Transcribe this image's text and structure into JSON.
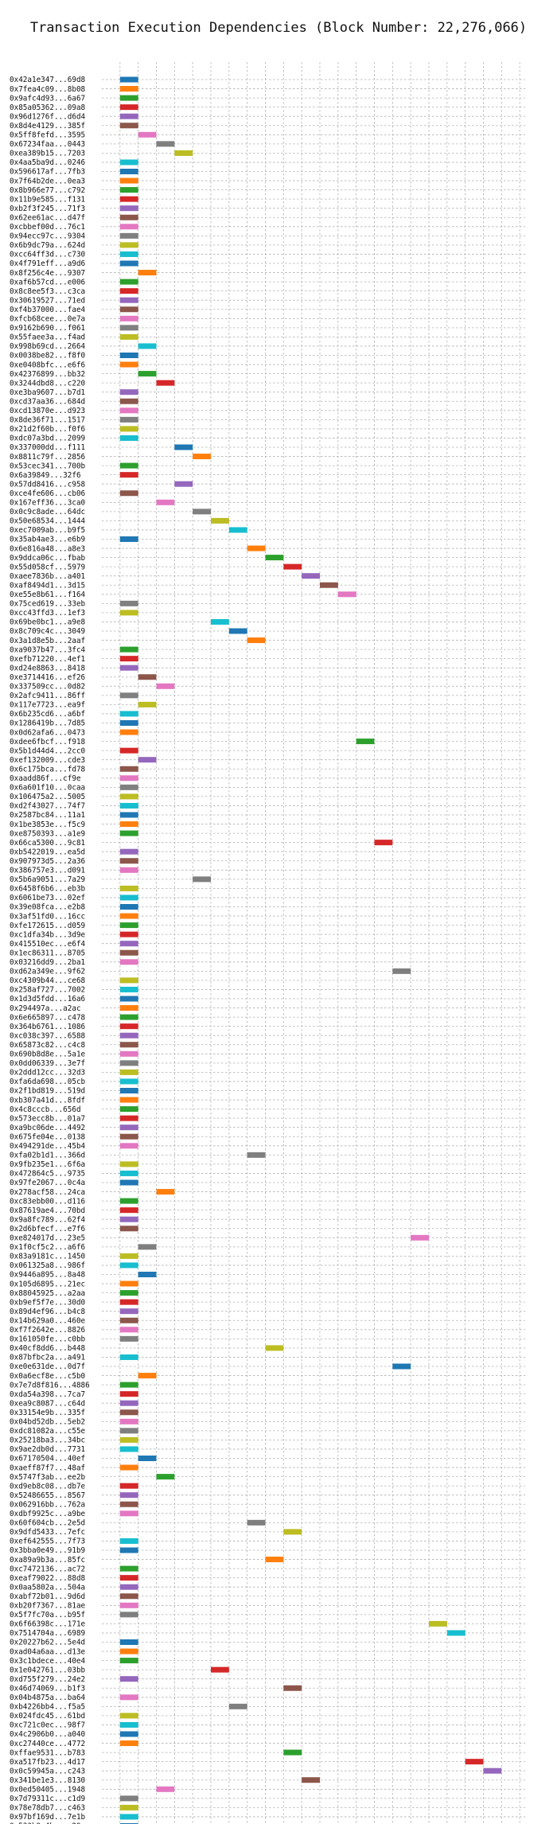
{
  "chart_data": {
    "type": "bar",
    "title": "Transaction Execution Dependencies (Block Number: 22,276,066)",
    "xlabel": "",
    "ylabel": "",
    "xlim": [
      -1,
      22.3
    ],
    "xticks": [
      0,
      5,
      10,
      15,
      20
    ],
    "grid": true,
    "palette": [
      "#1f77b4",
      "#ff7f0e",
      "#2ca02c",
      "#d62728",
      "#9467bd",
      "#8c564b",
      "#e377c2",
      "#7f7f7f",
      "#bcbd22",
      "#17becf"
    ],
    "transactions": [
      {
        "label": "0x42a1e347...69d8",
        "start": 0
      },
      {
        "label": "0x7fea4c09...8b08",
        "start": 0
      },
      {
        "label": "0x9afc4d93...6a67",
        "start": 0
      },
      {
        "label": "0x85a05362...09a8",
        "start": 0
      },
      {
        "label": "0x96d1276f...d6d4",
        "start": 0
      },
      {
        "label": "0x8d4e4129...385f",
        "start": 0
      },
      {
        "label": "0x5ff8fefd...3595",
        "start": 1
      },
      {
        "label": "0x67234faa...0443",
        "start": 2
      },
      {
        "label": "0xea389b15...7203",
        "start": 3
      },
      {
        "label": "0x4aa5ba9d...0246",
        "start": 0
      },
      {
        "label": "0x596617af...7fb3",
        "start": 0
      },
      {
        "label": "0x7f64b2de...0ea3",
        "start": 0
      },
      {
        "label": "0x8b966e77...c792",
        "start": 0
      },
      {
        "label": "0x11b9e585...f131",
        "start": 0
      },
      {
        "label": "0xb2f3f245...71f3",
        "start": 0
      },
      {
        "label": "0x62ee61ac...d47f",
        "start": 0
      },
      {
        "label": "0xcbbef00d...76c1",
        "start": 0
      },
      {
        "label": "0x94ecc97c...9304",
        "start": 0
      },
      {
        "label": "0x6b9dc79a...624d",
        "start": 0
      },
      {
        "label": "0xcc64ff3d...c730",
        "start": 0
      },
      {
        "label": "0x4f791eff...a9d6",
        "start": 0
      },
      {
        "label": "0x8f256c4e...9307",
        "start": 1
      },
      {
        "label": "0xaf6b57cd...e006",
        "start": 0
      },
      {
        "label": "0x8c8ee5f3...c3ca",
        "start": 0
      },
      {
        "label": "0x30619527...71ed",
        "start": 0
      },
      {
        "label": "0xf4b37000...fae4",
        "start": 0
      },
      {
        "label": "0xfcb68cee...0e7a",
        "start": 0
      },
      {
        "label": "0x9162b690...f061",
        "start": 0
      },
      {
        "label": "0x55faee3a...f4ad",
        "start": 0
      },
      {
        "label": "0x998b69cd...2664",
        "start": 1
      },
      {
        "label": "0x0038be82...f8f0",
        "start": 0
      },
      {
        "label": "0xe0408bfc...e6f6",
        "start": 0
      },
      {
        "label": "0x42376899...bb32",
        "start": 1
      },
      {
        "label": "0x3244dbd8...c220",
        "start": 2
      },
      {
        "label": "0xe3ba9607...b7d1",
        "start": 0
      },
      {
        "label": "0xcd37aa36...684d",
        "start": 0
      },
      {
        "label": "0xcd13870e...d923",
        "start": 0
      },
      {
        "label": "0x8de36f71...1517",
        "start": 0
      },
      {
        "label": "0x21d2f60b...f0f6",
        "start": 0
      },
      {
        "label": "0xdc07a3bd...2099",
        "start": 0
      },
      {
        "label": "0x337000dd...f111",
        "start": 3
      },
      {
        "label": "0x8811c79f...2856",
        "start": 4
      },
      {
        "label": "0x53cec341...700b",
        "start": 0
      },
      {
        "label": "0x6a39849...32f6",
        "start": 0
      },
      {
        "label": "0x57dd8416...c958",
        "start": 3
      },
      {
        "label": "0xce4fe606...cb06",
        "start": 0
      },
      {
        "label": "0x167eff36...3ca0",
        "start": 2
      },
      {
        "label": "0x0c9c8ade...64dc",
        "start": 4
      },
      {
        "label": "0x50e68534...1444",
        "start": 5
      },
      {
        "label": "0xec7009ab...b9f5",
        "start": 6
      },
      {
        "label": "0x35ab4ae3...e6b9",
        "start": 0
      },
      {
        "label": "0x6e816a48...a8e3",
        "start": 7
      },
      {
        "label": "0x9ddca06c...fbab",
        "start": 8
      },
      {
        "label": "0x55d058cf...5979",
        "start": 9
      },
      {
        "label": "0xaee7836b...a401",
        "start": 10
      },
      {
        "label": "0xaf8494d1...3d15",
        "start": 11
      },
      {
        "label": "0xe55e8b61...f164",
        "start": 12
      },
      {
        "label": "0x75ced619...33eb",
        "start": 0
      },
      {
        "label": "0xcc43ffd3...1ef3",
        "start": 0
      },
      {
        "label": "0x69be0bc1...a9e8",
        "start": 5
      },
      {
        "label": "0x8c709c4c...3049",
        "start": 6
      },
      {
        "label": "0x3a1d8e5b...2aaf",
        "start": 7
      },
      {
        "label": "0xa9037b47...3fc4",
        "start": 0
      },
      {
        "label": "0xefb71220...4ef1",
        "start": 0
      },
      {
        "label": "0xd24e8863...8418",
        "start": 0
      },
      {
        "label": "0xe3714416...ef26",
        "start": 1
      },
      {
        "label": "0x337509cc...0d82",
        "start": 2
      },
      {
        "label": "0x2afc9411...86ff",
        "start": 0
      },
      {
        "label": "0x117e7723...ea9f",
        "start": 1
      },
      {
        "label": "0x6b235cd6...a6bf",
        "start": 0
      },
      {
        "label": "0x1286419b...7d85",
        "start": 0
      },
      {
        "label": "0x0d62afa6...0473",
        "start": 0
      },
      {
        "label": "0xdee6fbcf...f918",
        "start": 13
      },
      {
        "label": "0x5b1d44d4...2cc0",
        "start": 0
      },
      {
        "label": "0xef132009...cde3",
        "start": 1
      },
      {
        "label": "0x6c175bca...fd78",
        "start": 0
      },
      {
        "label": "0xaadd86f...cf9e",
        "start": 0
      },
      {
        "label": "0x6a601f10...0caa",
        "start": 0
      },
      {
        "label": "0x106475a2...5005",
        "start": 0
      },
      {
        "label": "0xd2f43027...74f7",
        "start": 0
      },
      {
        "label": "0x2587bc84...11a1",
        "start": 0
      },
      {
        "label": "0x1be3853e...f5c9",
        "start": 0
      },
      {
        "label": "0xe8750393...a1e9",
        "start": 0
      },
      {
        "label": "0x66ca5300...9c81",
        "start": 14
      },
      {
        "label": "0xb5422019...ea5d",
        "start": 0
      },
      {
        "label": "0x907973d5...2a36",
        "start": 0
      },
      {
        "label": "0x386757e3...d091",
        "start": 0
      },
      {
        "label": "0x5b6a9051...7a29",
        "start": 4
      },
      {
        "label": "0x6458f6b6...eb3b",
        "start": 0
      },
      {
        "label": "0x6061be73...02ef",
        "start": 0
      },
      {
        "label": "0x39e08fca...e2b8",
        "start": 0
      },
      {
        "label": "0x3af51fd0...16cc",
        "start": 0
      },
      {
        "label": "0xfe172615...d059",
        "start": 0
      },
      {
        "label": "0xc1dfa34b...3d9e",
        "start": 0
      },
      {
        "label": "0x415510ec...e6f4",
        "start": 0
      },
      {
        "label": "0x1ec86311...8705",
        "start": 0
      },
      {
        "label": "0x03216dd9...2ba1",
        "start": 0
      },
      {
        "label": "0xd62a349e...9f62",
        "start": 15
      },
      {
        "label": "0xc4309b44...ce68",
        "start": 0
      },
      {
        "label": "0x258af727...7002",
        "start": 0
      },
      {
        "label": "0x1d3d5fdd...16a6",
        "start": 0
      },
      {
        "label": "0x294497a...a2ac",
        "start": 0
      },
      {
        "label": "0x6e665897...c478",
        "start": 0
      },
      {
        "label": "0x364b6761...1086",
        "start": 0
      },
      {
        "label": "0xc038c397...6588",
        "start": 0
      },
      {
        "label": "0x65873c82...c4c8",
        "start": 0
      },
      {
        "label": "0x690b8d8e...5a1e",
        "start": 0
      },
      {
        "label": "0x0dd06339...3e7f",
        "start": 0
      },
      {
        "label": "0x2ddd12cc...32d3",
        "start": 0
      },
      {
        "label": "0xfa6da698...05cb",
        "start": 0
      },
      {
        "label": "0x2f1bd819...519d",
        "start": 0
      },
      {
        "label": "0xb307a41d...8fdf",
        "start": 0
      },
      {
        "label": "0x4c8cccb...656d",
        "start": 0
      },
      {
        "label": "0x573ecc8b...01a7",
        "start": 0
      },
      {
        "label": "0xa9bc06de...4492",
        "start": 0
      },
      {
        "label": "0x675fe04e...0138",
        "start": 0
      },
      {
        "label": "0x494291de...45b4",
        "start": 0
      },
      {
        "label": "0xfa02b1d1...366d",
        "start": 7
      },
      {
        "label": "0x9fb235e1...6f6a",
        "start": 0
      },
      {
        "label": "0x472864c5...9735",
        "start": 0
      },
      {
        "label": "0x97fe2067...0c4a",
        "start": 0
      },
      {
        "label": "0x278acf58...24ca",
        "start": 2
      },
      {
        "label": "0xc83ebb00...d116",
        "start": 0
      },
      {
        "label": "0x87619ae4...70bd",
        "start": 0
      },
      {
        "label": "0x9a8fc789...62f4",
        "start": 0
      },
      {
        "label": "0x2d6bfecf...e7f6",
        "start": 0
      },
      {
        "label": "0xe824017d...23e5",
        "start": 16
      },
      {
        "label": "0x1f0cf5c2...a6f6",
        "start": 1
      },
      {
        "label": "0x83a9181c...1450",
        "start": 0
      },
      {
        "label": "0x061325a8...986f",
        "start": 0
      },
      {
        "label": "0x9446a895...8a48",
        "start": 1
      },
      {
        "label": "0x105d6895...21ec",
        "start": 0
      },
      {
        "label": "0x88045925...a2aa",
        "start": 0
      },
      {
        "label": "0xb9ef5f7e...30d0",
        "start": 0
      },
      {
        "label": "0x89d4ef96...b4c8",
        "start": 0
      },
      {
        "label": "0x14b629a0...460e",
        "start": 0
      },
      {
        "label": "0xf7f2642e...8826",
        "start": 0
      },
      {
        "label": "0x161050fe...c0bb",
        "start": 0
      },
      {
        "label": "0x40cf8dd6...b448",
        "start": 8
      },
      {
        "label": "0x87bfbc2a...a491",
        "start": 0
      },
      {
        "label": "0xe0e631de...0d7f",
        "start": 15
      },
      {
        "label": "0x0a6ecf8e...c5b0",
        "start": 1
      },
      {
        "label": "0x7e7d8f816...4886",
        "start": 0
      },
      {
        "label": "0xda54a398...7ca7",
        "start": 0
      },
      {
        "label": "0xea9c8087...c64d",
        "start": 0
      },
      {
        "label": "0x33154e9b...335f",
        "start": 0
      },
      {
        "label": "0x04bd52db...5eb2",
        "start": 0
      },
      {
        "label": "0xdc81082a...c55e",
        "start": 0
      },
      {
        "label": "0x25218ba3...34bc",
        "start": 0
      },
      {
        "label": "0x9ae2db0d...7731",
        "start": 0
      },
      {
        "label": "0x67170504...40ef",
        "start": 1
      },
      {
        "label": "0xaeff87f7...48af",
        "start": 0
      },
      {
        "label": "0x5747f3ab...ee2b",
        "start": 2
      },
      {
        "label": "0xd9eb8c08...db7e",
        "start": 0
      },
      {
        "label": "0x52486655...8567",
        "start": 0
      },
      {
        "label": "0x062916bb...762a",
        "start": 0
      },
      {
        "label": "0xdbf9925c...a9be",
        "start": 0
      },
      {
        "label": "0x60f604cb...2e5d",
        "start": 7
      },
      {
        "label": "0x9dfd5433...7efc",
        "start": 9
      },
      {
        "label": "0xef642555...7f73",
        "start": 0
      },
      {
        "label": "0x3bba0e49...91b9",
        "start": 0
      },
      {
        "label": "0xa89a9b3a...85fc",
        "start": 8
      },
      {
        "label": "0xc7472136...ac72",
        "start": 0
      },
      {
        "label": "0xeaf79022...88d8",
        "start": 0
      },
      {
        "label": "0x0aa5802a...504a",
        "start": 0
      },
      {
        "label": "0xabf72b01...9d6d",
        "start": 0
      },
      {
        "label": "0xb20f7367...81ae",
        "start": 0
      },
      {
        "label": "0x5f7fc70a...b95f",
        "start": 0
      },
      {
        "label": "0x6f66398c...171e",
        "start": 17
      },
      {
        "label": "0x7514704a...6989",
        "start": 18
      },
      {
        "label": "0x20227b62...5e4d",
        "start": 0
      },
      {
        "label": "0xad04a6aa...d13e",
        "start": 0
      },
      {
        "label": "0x3c1bdece...40e4",
        "start": 0
      },
      {
        "label": "0x1e042761...03bb",
        "start": 5
      },
      {
        "label": "0xd755f279...24e2",
        "start": 0
      },
      {
        "label": "0x46d74069...b1f3",
        "start": 9
      },
      {
        "label": "0x04b4875a...ba64",
        "start": 0
      },
      {
        "label": "0xb4226bb4...f5a5",
        "start": 6
      },
      {
        "label": "0x024fdc45...61bd",
        "start": 0
      },
      {
        "label": "0xc721c0ec...98f7",
        "start": 0
      },
      {
        "label": "0x4c2906b0...a040",
        "start": 0
      },
      {
        "label": "0xc27440ce...4772",
        "start": 0
      },
      {
        "label": "0xffae9531...b783",
        "start": 9
      },
      {
        "label": "0xa517fb23...4d17",
        "start": 19
      },
      {
        "label": "0x0c59945a...c243",
        "start": 20
      },
      {
        "label": "0x341be1e3...8130",
        "start": 10
      },
      {
        "label": "0x0ed50405...1948",
        "start": 2
      },
      {
        "label": "0x7d79311c...c1d9",
        "start": 0
      },
      {
        "label": "0x78e78db7...c463",
        "start": 0
      },
      {
        "label": "0x97bf169d...7e1b",
        "start": 0
      },
      {
        "label": "0x533b9e4b...e29e",
        "start": 0
      }
    ]
  }
}
